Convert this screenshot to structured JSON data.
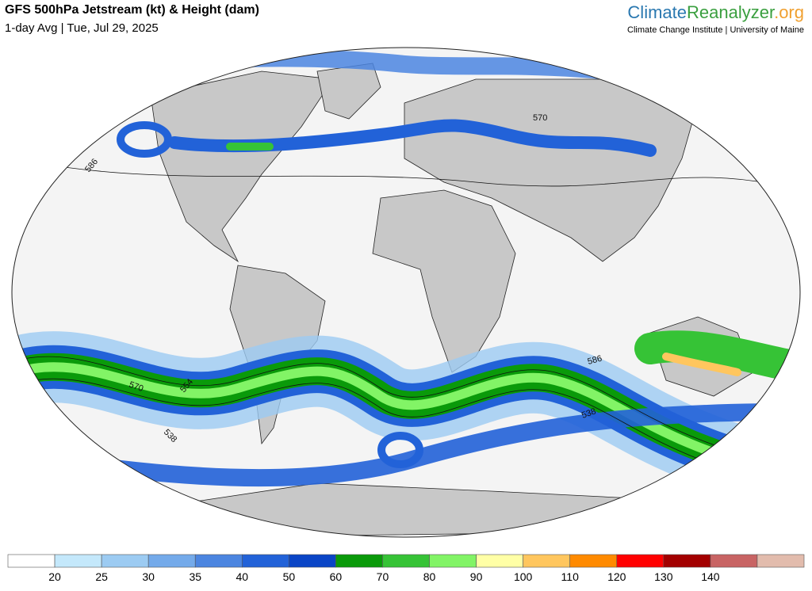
{
  "header": {
    "title": "GFS 500hPa Jetstream (kt) & Height (dam)",
    "subtitle": "1-day Avg | Tue, Jul 29, 2025",
    "logo": {
      "part1": "Climate",
      "part2": "Reanalyzer",
      "part3": ".org"
    },
    "affiliation": "Climate Change Institute | University of Maine"
  },
  "contour_labels": [
    "586",
    "570",
    "586",
    "570",
    "554",
    "538",
    "538"
  ],
  "colorbar": {
    "ticks": [
      20,
      25,
      30,
      35,
      40,
      50,
      60,
      70,
      80,
      90,
      100,
      110,
      120,
      130,
      140
    ],
    "colors": [
      "#ffffff",
      "#c4e8fb",
      "#9ccbf2",
      "#74aaea",
      "#4b85e0",
      "#2262d8",
      "#0a45c6",
      "#0a9a0a",
      "#36c336",
      "#82f466",
      "#ffffa6",
      "#ffc65e",
      "#ff8a00",
      "#ff0000",
      "#a30000",
      "#c86464",
      "#e2bcad"
    ]
  }
}
